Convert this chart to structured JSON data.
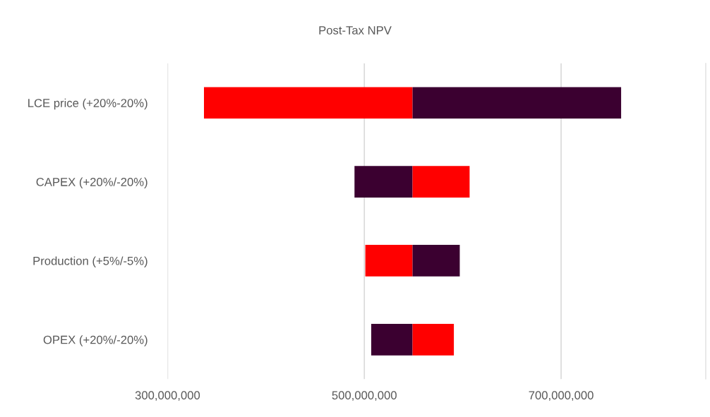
{
  "chart_data": {
    "type": "bar",
    "title": "Post-Tax NPV",
    "orientation": "horizontal",
    "categories": [
      "LCE price (+20%-20%)",
      "CAPEX (+20%/-20%)",
      "Production (+5%/-5%)",
      "OPEX (+20%/-20%)"
    ],
    "series": [
      {
        "colors": [
          "#ff0000",
          "#3b0030",
          "#ff0000",
          "#3b0030"
        ],
        "base": [
          337000000,
          490000000,
          501000000,
          507000000
        ],
        "values": [
          212000000,
          59000000,
          48000000,
          42000000
        ]
      },
      {
        "colors": [
          "#3b0030",
          "#ff0000",
          "#3b0030",
          "#ff0000"
        ],
        "base": [
          549000000,
          549000000,
          549000000,
          549000000
        ],
        "values": [
          212000000,
          58000000,
          48000000,
          42000000
        ]
      }
    ],
    "xlim": [
      300000000,
      847000000
    ],
    "xticks": [
      {
        "value": 300000000,
        "label": "300,000,000"
      },
      {
        "value": 500000000,
        "label": "500,000,000"
      },
      {
        "value": 700000000,
        "label": "700,000,000"
      }
    ],
    "grid": "x"
  }
}
